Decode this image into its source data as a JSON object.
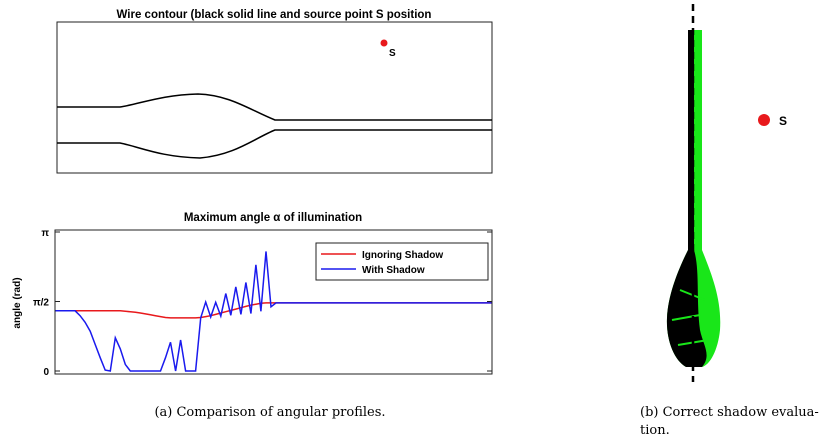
{
  "contour_plot": {
    "title": "Wire contour (black solid line and source point S position",
    "source_label": "S"
  },
  "chart_data": {
    "type": "line",
    "title": "Maximum angle α of illumination",
    "ylabel": "angle (rad)",
    "ylim": [
      0,
      3.1416
    ],
    "yticks": [
      0,
      {
        "value": 1.5708,
        "label": "π/2"
      },
      {
        "value": 3.1416,
        "label": "π"
      }
    ],
    "legend": "northeast",
    "series": [
      {
        "name": "Ignoring Shadow",
        "color": "#e8191c",
        "values": [
          1.36,
          1.36,
          1.36,
          1.36,
          1.36,
          1.36,
          1.36,
          1.36,
          1.36,
          1.36,
          1.36,
          1.36,
          1.36,
          1.36,
          1.35,
          1.34,
          1.33,
          1.31,
          1.29,
          1.27,
          1.25,
          1.23,
          1.21,
          1.2,
          1.2,
          1.2,
          1.2,
          1.2,
          1.2,
          1.21,
          1.23,
          1.25,
          1.28,
          1.31,
          1.34,
          1.37,
          1.4,
          1.43,
          1.46,
          1.49,
          1.51,
          1.53,
          1.54,
          1.54,
          1.54,
          1.54,
          1.54,
          1.54,
          1.54,
          1.54,
          1.54,
          1.54,
          1.54,
          1.54,
          1.54,
          1.54,
          1.54,
          1.54,
          1.54,
          1.54,
          1.54,
          1.54,
          1.54,
          1.54,
          1.54,
          1.54,
          1.54,
          1.54,
          1.54,
          1.54,
          1.54,
          1.54,
          1.54,
          1.54,
          1.54,
          1.54,
          1.54,
          1.54,
          1.54,
          1.54,
          1.54,
          1.54,
          1.54,
          1.54,
          1.54,
          1.54,
          1.54,
          1.54
        ]
      },
      {
        "name": "With Shadow",
        "color": "#1a1aee",
        "values": [
          1.36,
          1.36,
          1.36,
          1.36,
          1.36,
          1.25,
          1.1,
          0.9,
          0.6,
          0.3,
          0.02,
          0,
          0.75,
          0.5,
          0.15,
          0,
          0,
          0,
          0,
          0,
          0,
          0,
          0.3,
          0.65,
          0,
          0.7,
          0,
          0,
          0,
          1.2,
          1.56,
          1.22,
          1.55,
          1.24,
          1.75,
          1.26,
          1.9,
          1.28,
          2.0,
          1.3,
          2.4,
          1.35,
          2.7,
          1.45,
          1.54,
          1.54,
          1.54,
          1.54,
          1.54,
          1.54,
          1.54,
          1.54,
          1.54,
          1.54,
          1.54,
          1.54,
          1.54,
          1.54,
          1.54,
          1.54,
          1.54,
          1.54,
          1.54,
          1.54,
          1.54,
          1.54,
          1.54,
          1.54,
          1.54,
          1.54,
          1.54,
          1.54,
          1.54,
          1.54,
          1.54,
          1.54,
          1.54,
          1.54,
          1.54,
          1.54,
          1.54,
          1.54,
          1.54,
          1.54,
          1.54,
          1.54,
          1.54,
          1.54
        ]
      }
    ]
  },
  "render": {
    "source_label": "S"
  },
  "captions": {
    "a": "(a) Comparison of angular profiles.",
    "b": [
      "(b) Correct shadow evalua-",
      "tion."
    ]
  }
}
